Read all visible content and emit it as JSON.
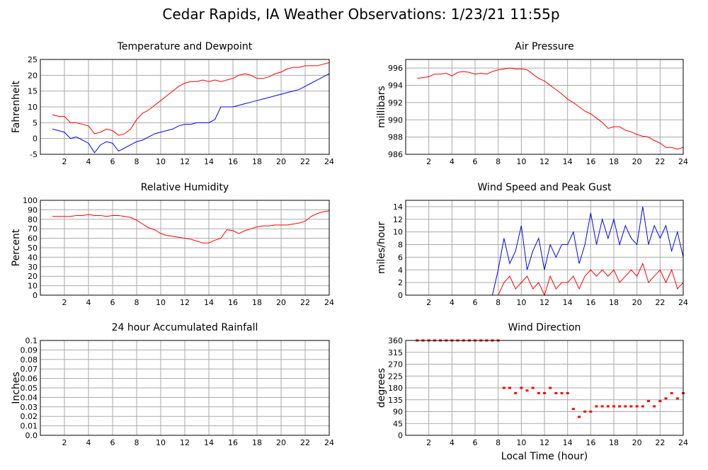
{
  "title": "Cedar Rapids, IA Weather Observations: 1/23/21 11:55p",
  "chart_data": [
    {
      "type": "line",
      "title": "Temperature and Dewpoint",
      "ylabel": "Fahrenheit",
      "x": [
        1,
        1.5,
        2,
        2.5,
        3,
        3.5,
        4,
        4.5,
        5,
        5.5,
        6,
        6.5,
        7,
        7.5,
        8,
        8.5,
        9,
        9.5,
        10,
        10.5,
        11,
        11.5,
        12,
        12.5,
        13,
        13.5,
        14,
        14.5,
        15,
        15.5,
        16,
        16.5,
        17,
        17.5,
        18,
        18.5,
        19,
        19.5,
        20,
        20.5,
        21,
        21.5,
        22,
        22.5,
        23,
        23.5,
        24
      ],
      "series": [
        {
          "color": "#ff0000",
          "values": [
            7.5,
            7,
            7,
            5,
            5,
            4.5,
            4,
            1.5,
            2,
            3,
            2.5,
            1,
            1.5,
            3,
            6,
            8,
            9,
            10.5,
            12,
            13.5,
            15,
            16.5,
            17.5,
            18,
            18,
            18.5,
            18,
            18.5,
            18,
            18.5,
            19,
            20,
            20.5,
            20,
            19,
            19,
            19.5,
            20.5,
            21,
            22,
            22.5,
            22.5,
            23,
            23,
            23,
            23.5,
            24
          ]
        },
        {
          "color": "#0000ff",
          "values": [
            3,
            2.5,
            2,
            0,
            0.5,
            -0.5,
            -1.5,
            -4.5,
            -2,
            -1,
            -1.5,
            -4,
            -3,
            -2,
            -1,
            -0.5,
            0.5,
            1.5,
            2,
            2.5,
            3,
            4,
            4.5,
            4.5,
            5,
            5,
            5,
            6,
            10,
            10,
            10,
            10.5,
            11,
            11.5,
            12,
            12.5,
            13,
            13.5,
            14,
            14.5,
            15,
            15.5,
            16.5,
            17.5,
            18.5,
            19.5,
            20.5
          ]
        }
      ],
      "xlim": [
        0,
        24
      ],
      "xticks": [
        2,
        4,
        6,
        8,
        10,
        12,
        14,
        16,
        18,
        20,
        22,
        24
      ],
      "ylim": [
        -5,
        25
      ],
      "yticks": [
        -5,
        0,
        5,
        10,
        15,
        20,
        25
      ],
      "grid": true
    },
    {
      "type": "line",
      "title": "Air Pressure",
      "ylabel": "millibars",
      "x": [
        1,
        1.5,
        2,
        2.5,
        3,
        3.5,
        4,
        4.5,
        5,
        5.5,
        6,
        6.5,
        7,
        7.5,
        8,
        8.5,
        9,
        9.5,
        10,
        10.5,
        11,
        11.5,
        12,
        12.5,
        13,
        13.5,
        14,
        14.5,
        15,
        15.5,
        16,
        16.5,
        17,
        17.5,
        18,
        18.5,
        19,
        19.5,
        20,
        20.5,
        21,
        21.5,
        22,
        22.5,
        23,
        23.5,
        24
      ],
      "series": [
        {
          "color": "#ff0000",
          "values": [
            994.8,
            994.9,
            995,
            995.3,
            995.3,
            995.4,
            995.1,
            995.5,
            995.6,
            995.5,
            995.3,
            995.4,
            995.3,
            995.6,
            995.8,
            995.9,
            996,
            995.9,
            995.9,
            995.8,
            995.3,
            994.8,
            994.5,
            994,
            993.5,
            993,
            992.4,
            992,
            991.5,
            991,
            990.7,
            990.2,
            989.7,
            989,
            989.2,
            989.2,
            988.8,
            988.6,
            988.3,
            988.1,
            988,
            987.6,
            987.3,
            986.8,
            986.8,
            986.6,
            986.8
          ]
        }
      ],
      "xlim": [
        0,
        24
      ],
      "xticks": [
        2,
        4,
        6,
        8,
        10,
        12,
        14,
        16,
        18,
        20,
        22,
        24
      ],
      "ylim": [
        986,
        997
      ],
      "yticks": [
        986,
        988,
        990,
        992,
        994,
        996
      ],
      "grid": true
    },
    {
      "type": "line",
      "title": "Relative Humidity",
      "ylabel": "Percent",
      "x": [
        1,
        1.5,
        2,
        2.5,
        3,
        3.5,
        4,
        4.5,
        5,
        5.5,
        6,
        6.5,
        7,
        7.5,
        8,
        8.5,
        9,
        9.5,
        10,
        10.5,
        11,
        11.5,
        12,
        12.5,
        13,
        13.5,
        14,
        14.5,
        15,
        15.5,
        16,
        16.5,
        17,
        17.5,
        18,
        18.5,
        19,
        19.5,
        20,
        20.5,
        21,
        21.5,
        22,
        22.5,
        23,
        23.5,
        24
      ],
      "series": [
        {
          "color": "#ff0000",
          "values": [
            83,
            83,
            83,
            83,
            84,
            84,
            85,
            84,
            84,
            83,
            84,
            84,
            83,
            82,
            79,
            75,
            71,
            69,
            65,
            63,
            62,
            61,
            60,
            59,
            57,
            55,
            55,
            58,
            60,
            69,
            68,
            65,
            68,
            70,
            72,
            73,
            73,
            74,
            74,
            74,
            75,
            76,
            78,
            83,
            86,
            88,
            89
          ]
        }
      ],
      "xlim": [
        0,
        24
      ],
      "xticks": [
        2,
        4,
        6,
        8,
        10,
        12,
        14,
        16,
        18,
        20,
        22,
        24
      ],
      "ylim": [
        0,
        100
      ],
      "yticks": [
        0,
        10,
        20,
        30,
        40,
        50,
        60,
        70,
        80,
        90,
        100
      ],
      "grid": true
    },
    {
      "type": "line",
      "title": "Wind Speed and Peak Gust",
      "ylabel": "miles/hour",
      "x": [
        1,
        1.5,
        2,
        2.5,
        3,
        3.5,
        4,
        4.5,
        5,
        5.5,
        6,
        6.5,
        7,
        7.5,
        8,
        8.5,
        9,
        9.5,
        10,
        10.5,
        11,
        11.5,
        12,
        12.5,
        13,
        13.5,
        14,
        14.5,
        15,
        15.5,
        16,
        16.5,
        17,
        17.5,
        18,
        18.5,
        19,
        19.5,
        20,
        20.5,
        21,
        21.5,
        22,
        22.5,
        23,
        23.5,
        24
      ],
      "series": [
        {
          "color": "#0000ff",
          "values": [
            0,
            0,
            0,
            0,
            0,
            0,
            0,
            0,
            0,
            0,
            0,
            0,
            0,
            0,
            4,
            9,
            5,
            7,
            11,
            4,
            7,
            9,
            4,
            8,
            6,
            8,
            8,
            10,
            5,
            8,
            13,
            8,
            12,
            9,
            12,
            8,
            11,
            9,
            8,
            14,
            8,
            11,
            9,
            11,
            7,
            10,
            6
          ]
        },
        {
          "color": "#ff0000",
          "values": [
            0,
            0,
            0,
            0,
            0,
            0,
            0,
            0,
            0,
            0,
            0,
            0,
            0,
            0,
            0,
            2,
            3,
            1,
            2,
            3,
            1,
            2,
            0,
            3,
            1,
            2,
            2,
            3,
            1,
            3,
            4,
            3,
            4,
            3,
            4,
            2,
            3,
            4,
            3,
            5,
            2,
            3,
            4,
            2,
            4,
            1,
            2
          ]
        }
      ],
      "xlim": [
        0,
        24
      ],
      "xticks": [
        2,
        4,
        6,
        8,
        10,
        12,
        14,
        16,
        18,
        20,
        22,
        24
      ],
      "ylim": [
        0,
        15
      ],
      "yticks": [
        0,
        2,
        4,
        6,
        8,
        10,
        12,
        14
      ],
      "grid": true
    },
    {
      "type": "line",
      "title": "24 hour Accumulated Rainfall",
      "ylabel": "Inches",
      "x": [
        1,
        1.5,
        2,
        2.5,
        3,
        3.5,
        4,
        4.5,
        5,
        5.5,
        6,
        6.5,
        7,
        7.5,
        8,
        8.5,
        9,
        9.5,
        10,
        10.5,
        11,
        11.5,
        12,
        12.5,
        13,
        13.5,
        14,
        14.5,
        15,
        15.5,
        16,
        16.5,
        17,
        17.5,
        18,
        18.5,
        19,
        19.5,
        20,
        20.5,
        21,
        21.5,
        22,
        22.5,
        23,
        23.5,
        24
      ],
      "series": [
        {
          "color": "#ff0000",
          "values": [
            0,
            0,
            0,
            0,
            0,
            0,
            0,
            0,
            0,
            0,
            0,
            0,
            0,
            0,
            0,
            0,
            0,
            0,
            0,
            0,
            0,
            0,
            0,
            0,
            0,
            0,
            0,
            0,
            0,
            0,
            0,
            0,
            0,
            0,
            0,
            0,
            0,
            0,
            0,
            0,
            0,
            0,
            0,
            0,
            0,
            0,
            0
          ]
        }
      ],
      "xlim": [
        0,
        24
      ],
      "xticks": [
        2,
        4,
        6,
        8,
        10,
        12,
        14,
        16,
        18,
        20,
        22,
        24
      ],
      "ylim": [
        0,
        0.1
      ],
      "yticks": [
        {
          "value": 0,
          "label": "0.0"
        },
        0.01,
        0.02,
        0.03,
        0.04,
        0.05,
        0.06,
        0.07,
        0.08,
        0.09,
        0.1
      ],
      "grid": true
    },
    {
      "type": "scatter",
      "title": "Wind Direction",
      "ylabel": "degrees",
      "xlabel": "Local Time (hour)",
      "x": [
        1,
        1.5,
        2,
        2.5,
        3,
        3.5,
        4,
        4.5,
        5,
        5.5,
        6,
        6.5,
        7,
        7.5,
        8,
        8.5,
        9,
        9.5,
        10,
        10.5,
        11,
        11.5,
        12,
        12.5,
        13,
        13.5,
        14,
        14.5,
        15,
        15.5,
        16,
        16.5,
        17,
        17.5,
        18,
        18.5,
        19,
        19.5,
        20,
        20.5,
        21,
        21.5,
        22,
        22.5,
        23,
        23.5,
        24
      ],
      "series": [
        {
          "color": "#ff0000",
          "values": [
            360,
            360,
            360,
            360,
            360,
            360,
            360,
            360,
            360,
            360,
            360,
            360,
            360,
            360,
            360,
            180,
            180,
            160,
            180,
            170,
            180,
            160,
            160,
            180,
            160,
            160,
            160,
            100,
            70,
            90,
            90,
            110,
            110,
            110,
            110,
            110,
            110,
            110,
            110,
            110,
            130,
            110,
            130,
            140,
            160,
            140,
            160
          ]
        }
      ],
      "xlim": [
        0,
        24
      ],
      "xticks": [
        2,
        4,
        6,
        8,
        10,
        12,
        14,
        16,
        18,
        20,
        22,
        24
      ],
      "ylim": [
        0,
        360
      ],
      "yticks": [
        0,
        45,
        90,
        135,
        180,
        225,
        270,
        315,
        360
      ],
      "grid": true
    }
  ]
}
